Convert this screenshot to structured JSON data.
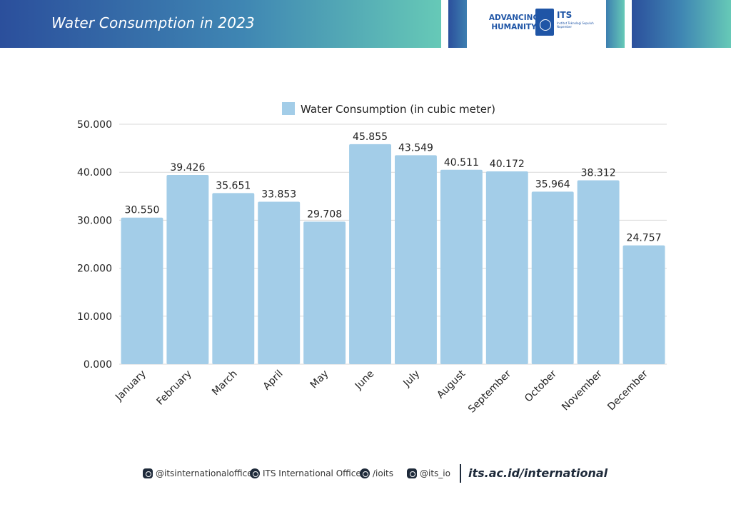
{
  "header": {
    "title": "Water Consumption in 2023",
    "logo_tagline_line1": "ADVANCING",
    "logo_tagline_line2": "HUMANITY",
    "logo_its": "ITS",
    "logo_subtext": "Institut Teknologi Sepuluh Nopember"
  },
  "colors": {
    "bar": "#a3cde8",
    "grid": "#d9d9d9",
    "header_start": "#2b4f9c",
    "header_end": "#66c9b7",
    "logo_blue": "#1f55a6"
  },
  "chart_data": {
    "type": "bar",
    "title": "",
    "xlabel": "",
    "ylabel": "",
    "legend": "Water Consumption (in cubic meter)",
    "legend_position": "top-center",
    "grid": true,
    "categories": [
      "January",
      "February",
      "March",
      "April",
      "May",
      "June",
      "July",
      "August",
      "September",
      "October",
      "November",
      "December"
    ],
    "values": [
      30.55,
      39.426,
      35.651,
      33.853,
      29.708,
      45.855,
      43.549,
      40.511,
      40.172,
      35.964,
      38.312,
      24.757
    ],
    "value_labels": [
      "30.550",
      "39.426",
      "35.651",
      "33.853",
      "29.708",
      "45.855",
      "43.549",
      "40.511",
      "40.172",
      "35.964",
      "38.312",
      "24.757"
    ],
    "ylim": [
      0,
      50
    ],
    "yticks": [
      0,
      10,
      20,
      30,
      40,
      50
    ],
    "ytick_labels": [
      "0.000",
      "10.000",
      "20.000",
      "30.000",
      "40.000",
      "50.000"
    ]
  },
  "footer": {
    "instagram": "@itsinternationaloffice",
    "youtube": "ITS International Office",
    "facebook": "/ioits",
    "line": "@its_io",
    "website": "its.ac.id/international"
  }
}
